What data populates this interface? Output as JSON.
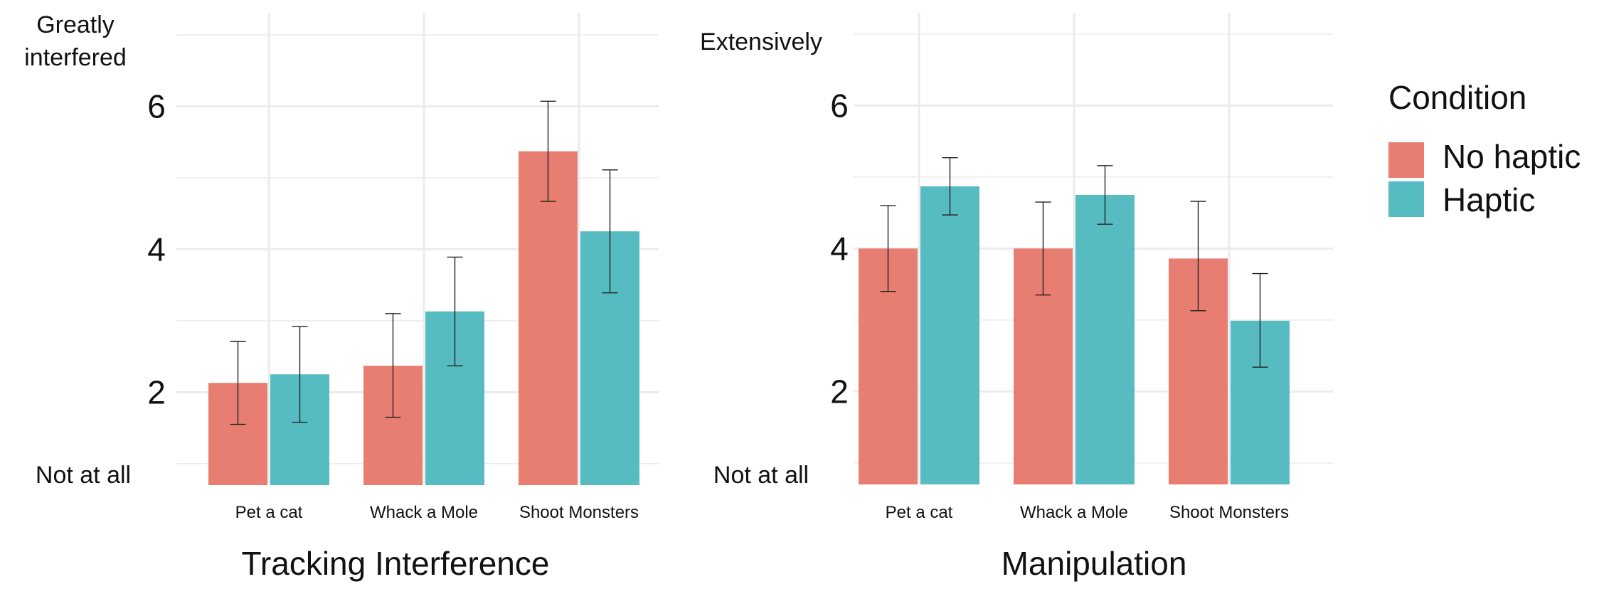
{
  "legend": {
    "title": "Condition",
    "entries": [
      {
        "name": "No haptic",
        "color": "#E87E72"
      },
      {
        "name": "Haptic",
        "color": "#56BCC2"
      }
    ]
  },
  "chart_data": [
    {
      "type": "bar",
      "xlabel": "Tracking Interference",
      "ylabel": "",
      "categories": [
        "Pet a cat",
        "Whack a Mole",
        "Shoot Monsters"
      ],
      "ylim": [
        0.7,
        7.3
      ],
      "yticks": [
        2,
        4,
        6
      ],
      "y_anchor_labels": {
        "top": "Greatly\ninterfered",
        "bottom": "Not at all"
      },
      "grid": true,
      "legend_position": "right",
      "series": [
        {
          "name": "No haptic",
          "color": "#E87E72",
          "values": [
            2.13,
            2.37,
            5.37
          ],
          "err_low": [
            1.55,
            1.65,
            4.67
          ],
          "err_high": [
            2.71,
            3.1,
            6.07
          ]
        },
        {
          "name": "Haptic",
          "color": "#56BCC2",
          "values": [
            2.25,
            3.13,
            4.25
          ],
          "err_low": [
            1.58,
            2.37,
            3.39
          ],
          "err_high": [
            2.92,
            3.89,
            5.11
          ]
        }
      ]
    },
    {
      "type": "bar",
      "xlabel": "Manipulation",
      "ylabel": "",
      "categories": [
        "Pet a cat",
        "Whack a Mole",
        "Shoot Monsters"
      ],
      "ylim": [
        0.7,
        7.3
      ],
      "yticks": [
        2,
        4,
        6
      ],
      "y_anchor_labels": {
        "top": "Extensively",
        "bottom": "Not at all"
      },
      "grid": true,
      "legend_position": "right",
      "series": [
        {
          "name": "No haptic",
          "color": "#E87E72",
          "values": [
            4.0,
            4.0,
            3.86
          ],
          "err_low": [
            3.4,
            3.35,
            3.13
          ],
          "err_high": [
            4.6,
            4.65,
            4.66
          ]
        },
        {
          "name": "Haptic",
          "color": "#56BCC2",
          "values": [
            4.87,
            4.75,
            2.99
          ],
          "err_low": [
            4.47,
            4.34,
            2.34
          ],
          "err_high": [
            5.27,
            5.16,
            3.65
          ]
        }
      ]
    }
  ]
}
